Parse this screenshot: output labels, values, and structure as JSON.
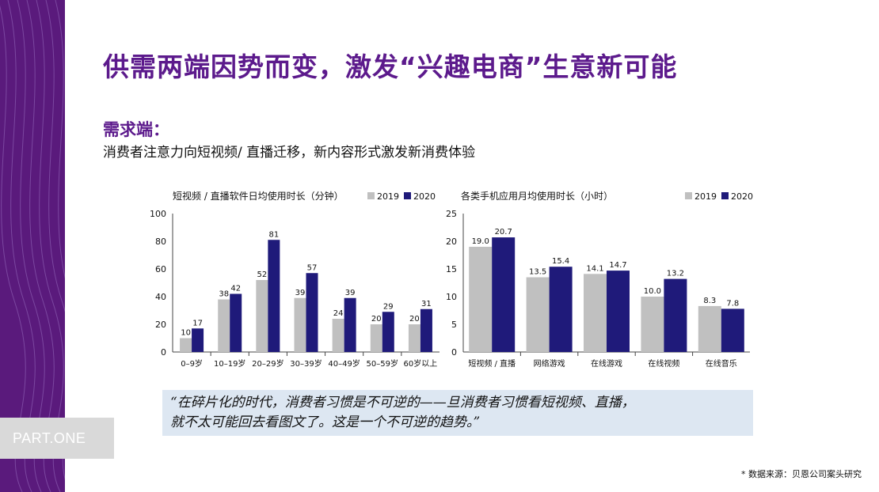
{
  "page": {
    "title": "供需两端因势而变，激发“兴趣电商”生意新可能",
    "section_heading": "需求端：",
    "section_subtext": "消费者注意力向短视频/ 直播迁移，新内容形式激发新消费体验",
    "part_label": "PART.ONE",
    "quote_lines": [
      "“在碎片化的时代，消费者习惯是不可逆的——旦消费者习惯看短视频、直播，",
      "就不太可能回去看图文了。这是一个不可逆的趋势。”"
    ],
    "source": "* 数据来源：贝恩公司案头研究",
    "colors": {
      "purple": "#5c1a8c",
      "series_2019": "#c0c0c0",
      "series_2020": "#1f1a7a",
      "quote_bg": "#dde7f2"
    }
  },
  "chart_data": [
    {
      "type": "bar",
      "title": "短视频 / 直播软件日均使用时长（分钟）",
      "categories": [
        "0–9岁",
        "10–19岁",
        "20–29岁",
        "30–39岁",
        "40–49岁",
        "50–59岁",
        "60岁以上"
      ],
      "series": [
        {
          "name": "2019",
          "values": [
            10,
            38,
            52,
            39,
            24,
            20,
            20
          ]
        },
        {
          "name": "2020",
          "values": [
            17,
            42,
            81,
            57,
            39,
            29,
            31
          ]
        }
      ],
      "ylim": [
        0,
        100
      ],
      "yticks": [
        0,
        20,
        40,
        60,
        80,
        100
      ],
      "legend": "top-right",
      "grid": false
    },
    {
      "type": "bar",
      "title": "各类手机应用月均使用时长（小时）",
      "categories": [
        "短视频 / 直播",
        "网络游戏",
        "在线游戏",
        "在线视频",
        "在线音乐"
      ],
      "series": [
        {
          "name": "2019",
          "values": [
            19.0,
            13.5,
            14.1,
            10.0,
            8.3
          ]
        },
        {
          "name": "2020",
          "values": [
            20.7,
            15.4,
            14.7,
            13.2,
            7.8
          ]
        }
      ],
      "ylim": [
        0,
        25
      ],
      "yticks": [
        0,
        5,
        10,
        15,
        20,
        25
      ],
      "legend": "top-right",
      "grid": false
    }
  ]
}
